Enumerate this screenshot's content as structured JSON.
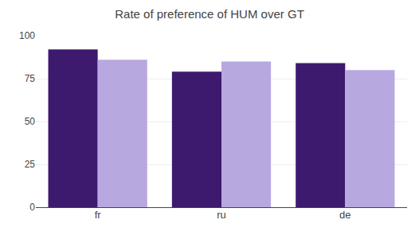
{
  "chart_data": {
    "type": "bar",
    "title": "Rate of preference of HUM over GT",
    "categories": [
      "fr",
      "ru",
      "de"
    ],
    "series": [
      {
        "color": "#3d1a6e",
        "values": [
          92,
          79,
          84
        ]
      },
      {
        "color": "#b8a8e0",
        "values": [
          86,
          85,
          80
        ]
      }
    ],
    "ylim": [
      0,
      100
    ],
    "yticks": [
      0,
      25,
      50,
      75,
      100
    ],
    "grid": true
  }
}
